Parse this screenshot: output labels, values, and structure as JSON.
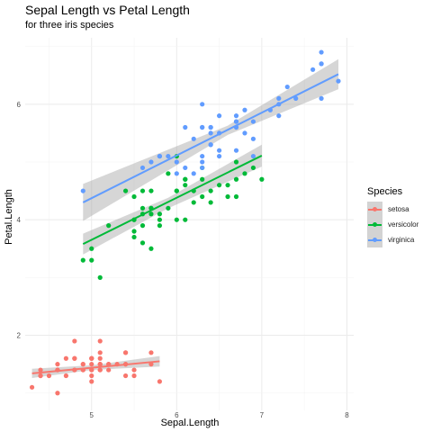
{
  "chart_data": {
    "type": "scatter",
    "title": "Sepal Length vs Petal Length",
    "subtitle": "for three iris species",
    "xlabel": "Sepal.Length",
    "ylabel": "Petal.Length",
    "xlim": [
      4.22,
      8.08
    ],
    "ylim": [
      0.7,
      7.15
    ],
    "x_ticks": [
      "5",
      "6",
      "7",
      "8"
    ],
    "y_ticks": [
      "2",
      "4",
      "6"
    ],
    "x_tick_values": [
      5,
      6,
      7,
      8
    ],
    "y_tick_values": [
      2,
      4,
      6
    ],
    "grid": true,
    "legend_title": "Species",
    "legend_position": "right",
    "series": [
      {
        "name": "setosa",
        "color": "#F8766D",
        "fit": {
          "x": [
            4.3,
            5.8
          ],
          "y": [
            1.34,
            1.55
          ],
          "band": [
            [
              4.3,
              1.26,
              1.42
            ],
            [
              5.0,
              1.4,
              1.48
            ],
            [
              5.8,
              1.46,
              1.64
            ]
          ]
        },
        "points": [
          [
            5.1,
            1.4
          ],
          [
            4.9,
            1.4
          ],
          [
            4.7,
            1.3
          ],
          [
            4.6,
            1.5
          ],
          [
            5.0,
            1.4
          ],
          [
            5.4,
            1.7
          ],
          [
            4.6,
            1.4
          ],
          [
            5.0,
            1.5
          ],
          [
            4.4,
            1.4
          ],
          [
            4.9,
            1.5
          ],
          [
            5.4,
            1.5
          ],
          [
            4.8,
            1.6
          ],
          [
            4.8,
            1.4
          ],
          [
            4.3,
            1.1
          ],
          [
            5.8,
            1.2
          ],
          [
            5.7,
            1.5
          ],
          [
            5.4,
            1.3
          ],
          [
            5.1,
            1.4
          ],
          [
            5.7,
            1.7
          ],
          [
            5.1,
            1.5
          ],
          [
            5.4,
            1.7
          ],
          [
            5.1,
            1.5
          ],
          [
            4.6,
            1.0
          ],
          [
            5.1,
            1.7
          ],
          [
            4.8,
            1.9
          ],
          [
            5.0,
            1.6
          ],
          [
            5.0,
            1.6
          ],
          [
            5.2,
            1.5
          ],
          [
            5.2,
            1.4
          ],
          [
            4.7,
            1.6
          ],
          [
            4.8,
            1.6
          ],
          [
            5.4,
            1.5
          ],
          [
            5.2,
            1.5
          ],
          [
            5.5,
            1.4
          ],
          [
            4.9,
            1.5
          ],
          [
            5.0,
            1.2
          ],
          [
            5.5,
            1.3
          ],
          [
            4.9,
            1.4
          ],
          [
            4.4,
            1.3
          ],
          [
            5.1,
            1.5
          ],
          [
            5.0,
            1.3
          ],
          [
            4.5,
            1.3
          ],
          [
            4.4,
            1.3
          ],
          [
            5.0,
            1.6
          ],
          [
            5.1,
            1.9
          ],
          [
            4.8,
            1.4
          ],
          [
            5.1,
            1.6
          ],
          [
            4.6,
            1.4
          ],
          [
            5.3,
            1.5
          ],
          [
            5.0,
            1.4
          ]
        ]
      },
      {
        "name": "versicolor",
        "color": "#00BA38",
        "fit": {
          "x": [
            4.9,
            7.0
          ],
          "y": [
            3.58,
            5.11
          ],
          "band": [
            [
              4.9,
              3.4,
              3.76
            ],
            [
              5.9,
              4.2,
              4.38
            ],
            [
              7.0,
              4.92,
              5.3
            ]
          ]
        },
        "points": [
          [
            7.0,
            4.7
          ],
          [
            6.4,
            4.5
          ],
          [
            6.9,
            4.9
          ],
          [
            5.5,
            4.0
          ],
          [
            6.5,
            4.6
          ],
          [
            5.7,
            4.5
          ],
          [
            6.3,
            4.7
          ],
          [
            4.9,
            3.3
          ],
          [
            6.6,
            4.6
          ],
          [
            5.2,
            3.9
          ],
          [
            5.0,
            3.5
          ],
          [
            5.9,
            4.2
          ],
          [
            6.0,
            4.0
          ],
          [
            6.1,
            4.7
          ],
          [
            5.6,
            3.6
          ],
          [
            6.7,
            4.4
          ],
          [
            5.6,
            4.5
          ],
          [
            5.8,
            4.1
          ],
          [
            6.2,
            4.5
          ],
          [
            5.6,
            3.9
          ],
          [
            5.9,
            4.8
          ],
          [
            6.1,
            4.0
          ],
          [
            6.3,
            4.9
          ],
          [
            6.1,
            4.7
          ],
          [
            6.4,
            4.3
          ],
          [
            6.6,
            4.4
          ],
          [
            6.8,
            4.8
          ],
          [
            6.7,
            5.0
          ],
          [
            6.0,
            4.5
          ],
          [
            5.7,
            3.5
          ],
          [
            5.5,
            3.8
          ],
          [
            5.5,
            3.7
          ],
          [
            5.8,
            3.9
          ],
          [
            6.0,
            5.1
          ],
          [
            5.4,
            4.5
          ],
          [
            6.0,
            4.5
          ],
          [
            6.7,
            4.7
          ],
          [
            6.3,
            4.4
          ],
          [
            5.6,
            4.1
          ],
          [
            5.5,
            4.0
          ],
          [
            5.5,
            4.4
          ],
          [
            6.1,
            4.6
          ],
          [
            5.8,
            4.0
          ],
          [
            5.0,
            3.3
          ],
          [
            5.6,
            4.2
          ],
          [
            5.7,
            4.2
          ],
          [
            5.7,
            4.2
          ],
          [
            6.2,
            4.3
          ],
          [
            5.1,
            3.0
          ],
          [
            5.7,
            4.1
          ]
        ]
      },
      {
        "name": "virginica",
        "color": "#619CFF",
        "fit": {
          "x": [
            4.9,
            7.9
          ],
          "y": [
            4.3,
            6.52
          ],
          "band": [
            [
              4.9,
              3.98,
              4.62
            ],
            [
              6.6,
              5.47,
              5.63
            ],
            [
              7.9,
              6.26,
              6.78
            ]
          ]
        },
        "points": [
          [
            6.3,
            6.0
          ],
          [
            5.8,
            5.1
          ],
          [
            7.1,
            5.9
          ],
          [
            6.3,
            5.6
          ],
          [
            6.5,
            5.8
          ],
          [
            7.6,
            6.6
          ],
          [
            4.9,
            4.5
          ],
          [
            7.3,
            6.3
          ],
          [
            6.7,
            5.8
          ],
          [
            7.2,
            6.1
          ],
          [
            6.5,
            5.1
          ],
          [
            6.4,
            5.3
          ],
          [
            6.8,
            5.5
          ],
          [
            5.7,
            5.0
          ],
          [
            5.8,
            5.1
          ],
          [
            6.4,
            5.3
          ],
          [
            6.5,
            5.5
          ],
          [
            7.7,
            6.7
          ],
          [
            7.7,
            6.9
          ],
          [
            6.0,
            5.0
          ],
          [
            6.9,
            5.7
          ],
          [
            5.6,
            4.9
          ],
          [
            7.7,
            6.7
          ],
          [
            6.3,
            4.9
          ],
          [
            6.7,
            5.7
          ],
          [
            7.2,
            6.0
          ],
          [
            6.2,
            4.8
          ],
          [
            6.1,
            4.9
          ],
          [
            6.4,
            5.6
          ],
          [
            7.2,
            5.8
          ],
          [
            7.4,
            6.1
          ],
          [
            7.9,
            6.4
          ],
          [
            6.4,
            5.6
          ],
          [
            6.3,
            5.1
          ],
          [
            6.1,
            5.6
          ],
          [
            7.7,
            6.1
          ],
          [
            6.3,
            5.6
          ],
          [
            6.4,
            5.5
          ],
          [
            6.0,
            4.8
          ],
          [
            6.9,
            5.4
          ],
          [
            6.7,
            5.6
          ],
          [
            6.9,
            5.1
          ],
          [
            5.8,
            5.1
          ],
          [
            6.8,
            5.9
          ],
          [
            6.7,
            5.7
          ],
          [
            6.7,
            5.2
          ],
          [
            6.3,
            5.0
          ],
          [
            6.5,
            5.2
          ],
          [
            6.2,
            5.4
          ],
          [
            5.9,
            5.1
          ]
        ]
      }
    ]
  }
}
